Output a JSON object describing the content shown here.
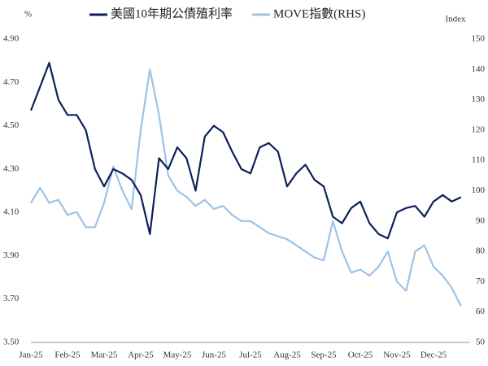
{
  "chart_data": {
    "type": "line",
    "y_label": "%",
    "y2_label": "Index",
    "categories": [
      "Jan-25",
      null,
      null,
      null,
      "Feb-25",
      null,
      null,
      null,
      "Mar-25",
      null,
      null,
      null,
      "Apr-25",
      null,
      null,
      null,
      "May-25",
      null,
      null,
      null,
      "Jun-25",
      null,
      null,
      null,
      "Jul-25",
      null,
      null,
      null,
      "Aug-25",
      null,
      null,
      null,
      "Sep-25",
      null,
      null,
      null,
      "Oct-25",
      null,
      null,
      null,
      "Nov-25",
      null,
      null,
      null,
      "Dec-25",
      null,
      null,
      null
    ],
    "series": [
      {
        "name": "美國10年期公債殖利率",
        "color": "#0d1f5c",
        "values": [
          4.57,
          4.68,
          4.79,
          4.62,
          4.55,
          4.55,
          4.48,
          4.3,
          4.22,
          4.3,
          4.28,
          4.25,
          4.18,
          4.0,
          4.35,
          4.3,
          4.4,
          4.35,
          4.2,
          4.45,
          4.5,
          4.47,
          4.38,
          4.3,
          4.28,
          4.4,
          4.42,
          4.38,
          4.22,
          4.28,
          4.32,
          4.25,
          4.22,
          4.08,
          4.05,
          4.12,
          4.15,
          4.05,
          4.0,
          3.98,
          4.1,
          4.12,
          4.13,
          4.08,
          4.15,
          4.18,
          4.15,
          4.17
        ]
      },
      {
        "name": "MOVE指數(RHS)",
        "color": "#9dc3e6",
        "axis": "y2",
        "values": [
          96,
          101,
          96,
          97,
          92,
          93,
          88,
          88,
          96,
          108,
          100,
          94,
          120,
          140,
          125,
          105,
          100,
          98,
          95,
          97,
          94,
          95,
          92,
          90,
          90,
          88,
          86,
          85,
          84,
          82,
          80,
          78,
          77,
          90,
          80,
          73,
          74,
          72,
          75,
          80,
          70,
          67,
          80,
          82,
          75,
          72,
          68,
          62
        ]
      }
    ],
    "ylim": [
      3.5,
      4.9
    ],
    "yticks": [
      {
        "value": 3.5,
        "label": "3.50"
      },
      {
        "value": 3.7,
        "label": "3.70"
      },
      {
        "value": 3.9,
        "label": "3.90"
      },
      {
        "value": 4.1,
        "label": "4.10"
      },
      {
        "value": 4.3,
        "label": "4.30"
      },
      {
        "value": 4.5,
        "label": "4.50"
      },
      {
        "value": 4.7,
        "label": "4.70"
      },
      {
        "value": 4.9,
        "label": "4.90"
      }
    ],
    "y2lim": [
      50,
      150
    ],
    "y2ticks": [
      50,
      60,
      70,
      80,
      90,
      100,
      110,
      120,
      130,
      140,
      150
    ],
    "legend": "top"
  }
}
